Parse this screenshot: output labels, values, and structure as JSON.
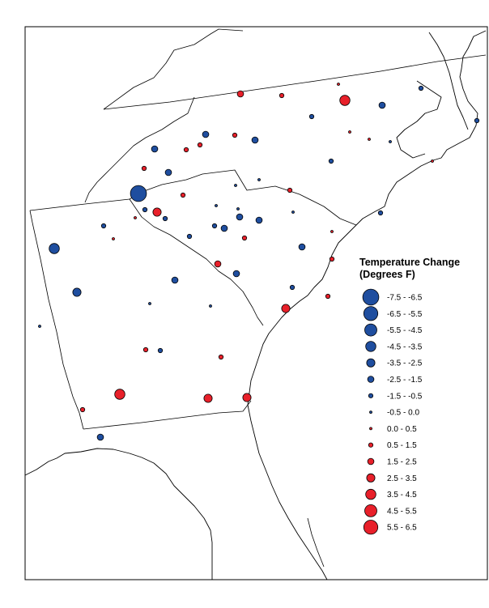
{
  "legend": {
    "title_line1": "Temperature Change",
    "title_line2": "(Degrees F)",
    "items": [
      {
        "label": "-7.5 - -6.5",
        "color": "#1f4e9f",
        "level": 15
      },
      {
        "label": "-6.5 - -5.5",
        "color": "#1f4e9f",
        "level": 14
      },
      {
        "label": "-5.5 - -4.5",
        "color": "#1f4e9f",
        "level": 13
      },
      {
        "label": "-4.5 - -3.5",
        "color": "#1f4e9f",
        "level": 12
      },
      {
        "label": "-3.5 - -2.5",
        "color": "#1f4e9f",
        "level": 11
      },
      {
        "label": "-2.5 - -1.5",
        "color": "#1f4e9f",
        "level": 10
      },
      {
        "label": "-1.5 - -0.5",
        "color": "#1f4e9f",
        "level": 9
      },
      {
        "label": "-0.5 - 0.0",
        "color": "#1f4e9f",
        "level": 8
      },
      {
        "label": "0.0 - 0.5",
        "color": "#e8202a",
        "level": 8
      },
      {
        "label": "0.5 - 1.5",
        "color": "#e8202a",
        "level": 9
      },
      {
        "label": "1.5 - 2.5",
        "color": "#e8202a",
        "level": 10
      },
      {
        "label": "2.5 - 3.5",
        "color": "#e8202a",
        "level": 11
      },
      {
        "label": "3.5 - 4.5",
        "color": "#e8202a",
        "level": 12
      },
      {
        "label": "4.5 - 5.5",
        "color": "#e8202a",
        "level": 13
      },
      {
        "label": "5.5 - 6.5",
        "color": "#e8202a",
        "level": 14
      }
    ]
  },
  "colors": {
    "cooling": "#1f4e9f",
    "warming": "#e8202a",
    "outline": "#000000"
  }
}
